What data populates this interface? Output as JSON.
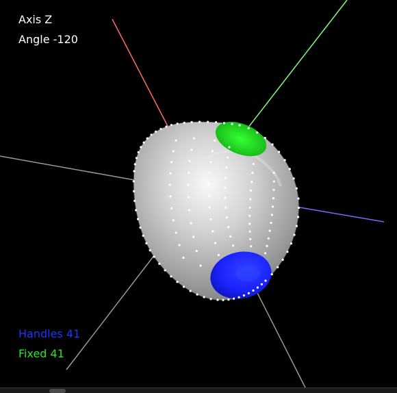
{
  "viewer": {
    "axis_text": "Axis Z",
    "angle_text": "Angle -120",
    "handles_text": "Handles 41",
    "fixed_text": "Fixed 41"
  },
  "colors": {
    "background": "#000000",
    "overlay_text": "#ffffff",
    "handles_text": "#1a35ff",
    "fixed_text": "#28e628",
    "axis_x": "#ff6b6b",
    "axis_y": "#7dff7d",
    "axis_z": "#7070ff",
    "axis_neutral": "#9a9a9a",
    "mesh_surface": "#c8c8c8",
    "handle_region": "#1b24ff",
    "fixed_region": "#22dd22",
    "vertex_dot": "#ffffff"
  },
  "scene": {
    "axes": [
      "axis-x-line",
      "axis-y-line",
      "axis-z-line",
      "axis-neutral-line"
    ],
    "regions": [
      "handle-region",
      "fixed-region"
    ]
  }
}
